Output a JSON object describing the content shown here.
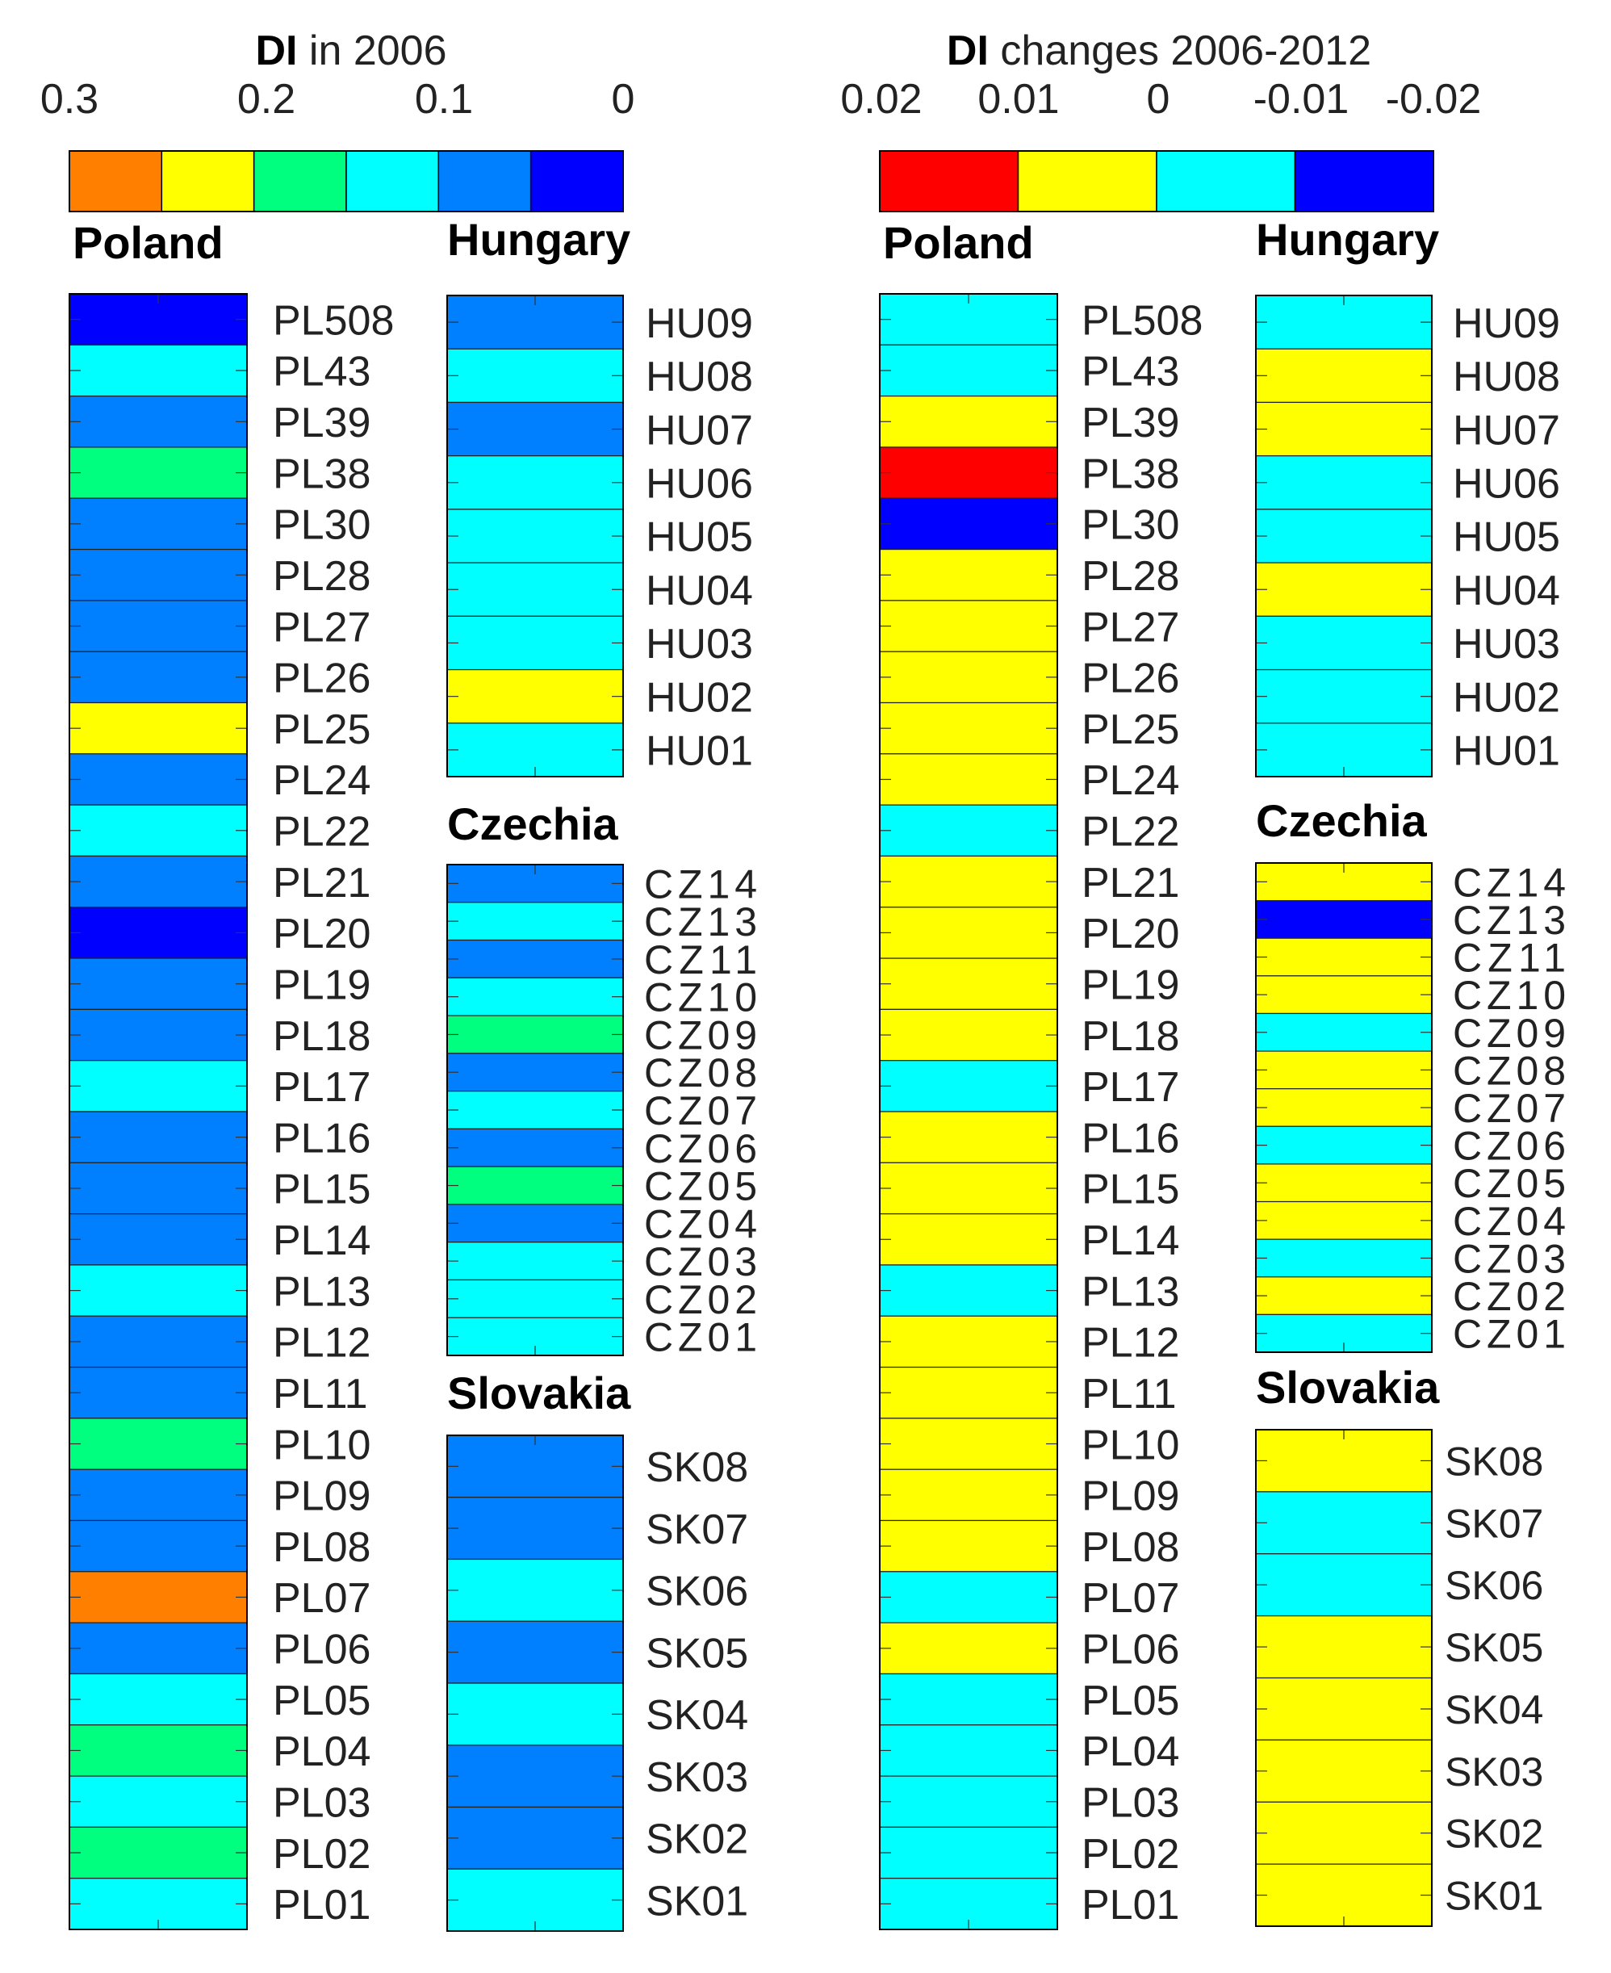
{
  "chart_data": [
    {
      "type": "heatmap",
      "title_bold": "DI",
      "title_rest": " in 2006",
      "colorbar": {
        "ticks": [
          "0.3",
          "0.2",
          "0.1",
          "0"
        ],
        "range": [
          0.3,
          0
        ],
        "bins": [
          {
            "min": 0.25,
            "max": 0.3,
            "color": "#ff7f00"
          },
          {
            "min": 0.2,
            "max": 0.25,
            "color": "#ffff00"
          },
          {
            "min": 0.15,
            "max": 0.2,
            "color": "#00ff7f"
          },
          {
            "min": 0.1,
            "max": 0.15,
            "color": "#00ffff"
          },
          {
            "min": 0.05,
            "max": 0.1,
            "color": "#007fff"
          },
          {
            "min": 0.0,
            "max": 0.05,
            "color": "#0000ff"
          }
        ]
      },
      "panels": [
        {
          "country": "Poland",
          "regions": [
            "PL508",
            "PL43",
            "PL39",
            "PL38",
            "PL30",
            "PL28",
            "PL27",
            "PL26",
            "PL25",
            "PL24",
            "PL22",
            "PL21",
            "PL20",
            "PL19",
            "PL18",
            "PL17",
            "PL16",
            "PL15",
            "PL14",
            "PL13",
            "PL12",
            "PL11",
            "PL10",
            "PL09",
            "PL08",
            "PL07",
            "PL06",
            "PL05",
            "PL04",
            "PL03",
            "PL02",
            "PL01"
          ],
          "values": [
            0.025,
            0.125,
            0.075,
            0.175,
            0.075,
            0.075,
            0.075,
            0.075,
            0.225,
            0.075,
            0.125,
            0.075,
            0.025,
            0.075,
            0.075,
            0.125,
            0.075,
            0.075,
            0.075,
            0.125,
            0.075,
            0.075,
            0.175,
            0.075,
            0.075,
            0.275,
            0.075,
            0.125,
            0.175,
            0.125,
            0.175,
            0.125
          ]
        },
        {
          "country": "Hungary",
          "regions": [
            "HU09",
            "HU08",
            "HU07",
            "HU06",
            "HU05",
            "HU04",
            "HU03",
            "HU02",
            "HU01"
          ],
          "values": [
            0.075,
            0.125,
            0.075,
            0.125,
            0.125,
            0.125,
            0.125,
            0.225,
            0.125
          ]
        },
        {
          "country": "Czechia",
          "regions": [
            "CZ14",
            "CZ13",
            "CZ11",
            "CZ10",
            "CZ09",
            "CZ08",
            "CZ07",
            "CZ06",
            "CZ05",
            "CZ04",
            "CZ03",
            "CZ02",
            "CZ01"
          ],
          "values": [
            0.075,
            0.125,
            0.075,
            0.125,
            0.175,
            0.075,
            0.125,
            0.075,
            0.175,
            0.075,
            0.125,
            0.125,
            0.125
          ]
        },
        {
          "country": "Slovakia",
          "regions": [
            "SK08",
            "SK07",
            "SK06",
            "SK05",
            "SK04",
            "SK03",
            "SK02",
            "SK01"
          ],
          "values": [
            0.075,
            0.075,
            0.125,
            0.075,
            0.125,
            0.075,
            0.075,
            0.125
          ]
        }
      ]
    },
    {
      "type": "heatmap",
      "title_bold": "DI",
      "title_rest": " changes 2006-2012",
      "colorbar": {
        "ticks": [
          "0.02",
          "0.01",
          "0",
          "-0.01",
          "-0.02"
        ],
        "range": [
          0.02,
          -0.02
        ],
        "bins": [
          {
            "min": 0.01,
            "max": 0.02,
            "color": "#ff0000"
          },
          {
            "min": 0.0,
            "max": 0.01,
            "color": "#ffff00"
          },
          {
            "min": -0.01,
            "max": 0.0,
            "color": "#00ffff"
          },
          {
            "min": -0.02,
            "max": -0.01,
            "color": "#0000ff"
          }
        ]
      },
      "panels": [
        {
          "country": "Poland",
          "regions": [
            "PL508",
            "PL43",
            "PL39",
            "PL38",
            "PL30",
            "PL28",
            "PL27",
            "PL26",
            "PL25",
            "PL24",
            "PL22",
            "PL21",
            "PL20",
            "PL19",
            "PL18",
            "PL17",
            "PL16",
            "PL15",
            "PL14",
            "PL13",
            "PL12",
            "PL11",
            "PL10",
            "PL09",
            "PL08",
            "PL07",
            "PL06",
            "PL05",
            "PL04",
            "PL03",
            "PL02",
            "PL01"
          ],
          "values": [
            -0.005,
            -0.005,
            0.005,
            0.015,
            -0.015,
            0.005,
            0.005,
            0.005,
            0.005,
            0.005,
            -0.005,
            0.005,
            0.005,
            0.005,
            0.005,
            -0.005,
            0.005,
            0.005,
            0.005,
            -0.005,
            0.005,
            0.005,
            0.005,
            0.005,
            0.005,
            -0.005,
            0.005,
            -0.005,
            -0.005,
            -0.005,
            -0.005,
            -0.005
          ]
        },
        {
          "country": "Hungary",
          "regions": [
            "HU09",
            "HU08",
            "HU07",
            "HU06",
            "HU05",
            "HU04",
            "HU03",
            "HU02",
            "HU01"
          ],
          "values": [
            -0.005,
            0.005,
            0.005,
            -0.005,
            -0.005,
            0.005,
            -0.005,
            -0.005,
            -0.005
          ]
        },
        {
          "country": "Czechia",
          "regions": [
            "CZ14",
            "CZ13",
            "CZ11",
            "CZ10",
            "CZ09",
            "CZ08",
            "CZ07",
            "CZ06",
            "CZ05",
            "CZ04",
            "CZ03",
            "CZ02",
            "CZ01"
          ],
          "values": [
            0.005,
            -0.015,
            0.005,
            0.005,
            -0.005,
            0.005,
            0.005,
            -0.005,
            0.005,
            0.005,
            -0.005,
            0.005,
            -0.005
          ]
        },
        {
          "country": "Slovakia",
          "regions": [
            "SK08",
            "SK07",
            "SK06",
            "SK05",
            "SK04",
            "SK03",
            "SK02",
            "SK01"
          ],
          "values": [
            0.005,
            -0.005,
            -0.005,
            0.005,
            0.005,
            0.005,
            0.005,
            0.005
          ]
        }
      ]
    }
  ]
}
